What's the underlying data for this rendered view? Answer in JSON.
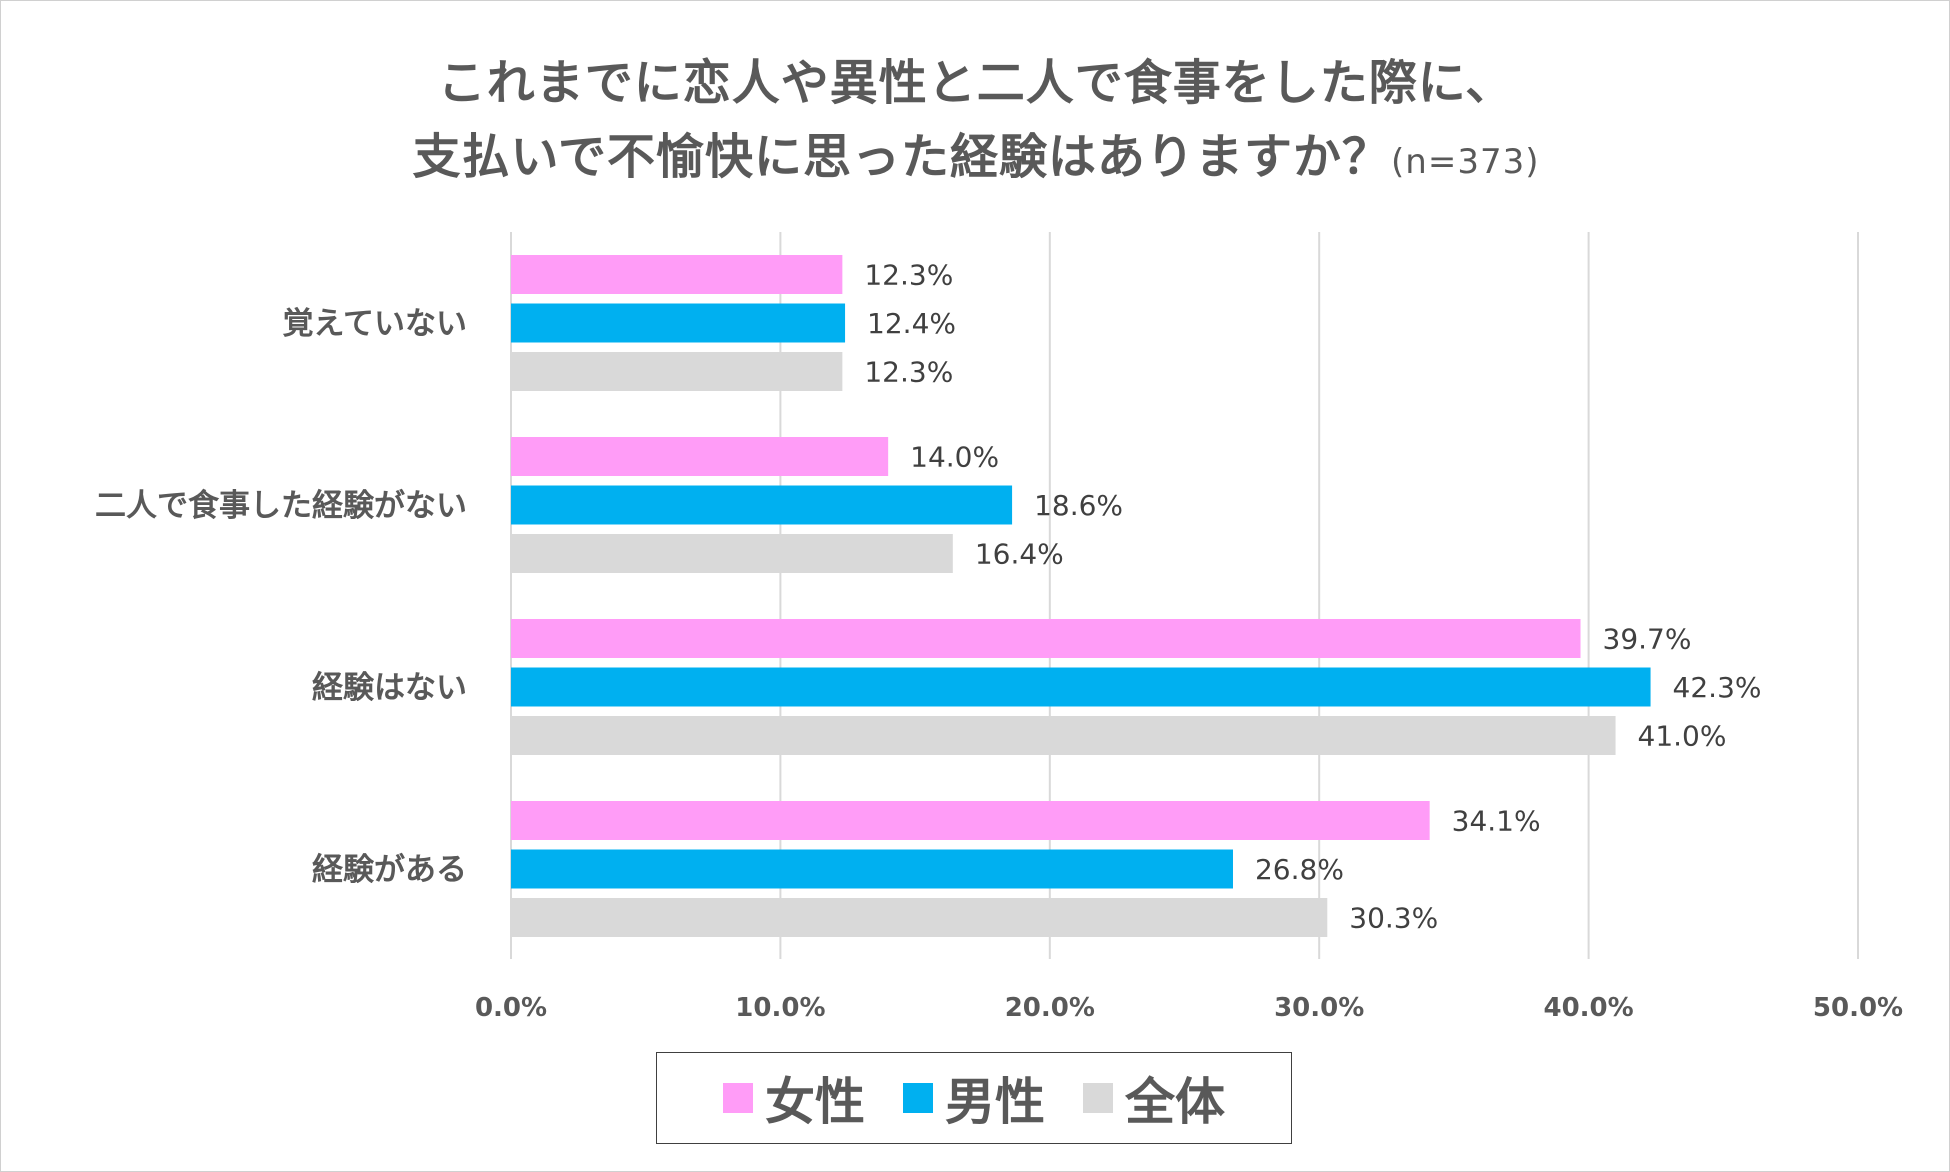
{
  "chart_data": {
    "type": "bar",
    "orientation": "horizontal",
    "title_line1": "これまでに恋人や異性と二人で食事をした際に、",
    "title_line2": "支払いで不愉快に思った経験はありますか？",
    "title_note": "(n=373)",
    "categories": [
      "覚えていない",
      "二人で食事した経験がない",
      "経験はない",
      "経験がある"
    ],
    "series": [
      {
        "name": "女性",
        "color": "#FF9CF7",
        "values": [
          12.3,
          14.0,
          39.7,
          34.1
        ],
        "labels": [
          "12.3%",
          "14.0%",
          "39.7%",
          "34.1%"
        ]
      },
      {
        "name": "男性",
        "color": "#00B0F0",
        "values": [
          12.4,
          18.6,
          42.3,
          26.8
        ],
        "labels": [
          "12.4%",
          "18.6%",
          "42.3%",
          "26.8%"
        ]
      },
      {
        "name": "全体",
        "color": "#D9D9D9",
        "values": [
          12.3,
          16.4,
          41.0,
          30.3
        ],
        "labels": [
          "12.3%",
          "16.4%",
          "41.0%",
          "30.3%"
        ]
      }
    ],
    "xlim": [
      0,
      50
    ],
    "xticks": [
      "0.0%",
      "10.0%",
      "20.0%",
      "30.0%",
      "40.0%",
      "50.0%"
    ],
    "grid": true,
    "legend_position": "bottom"
  }
}
